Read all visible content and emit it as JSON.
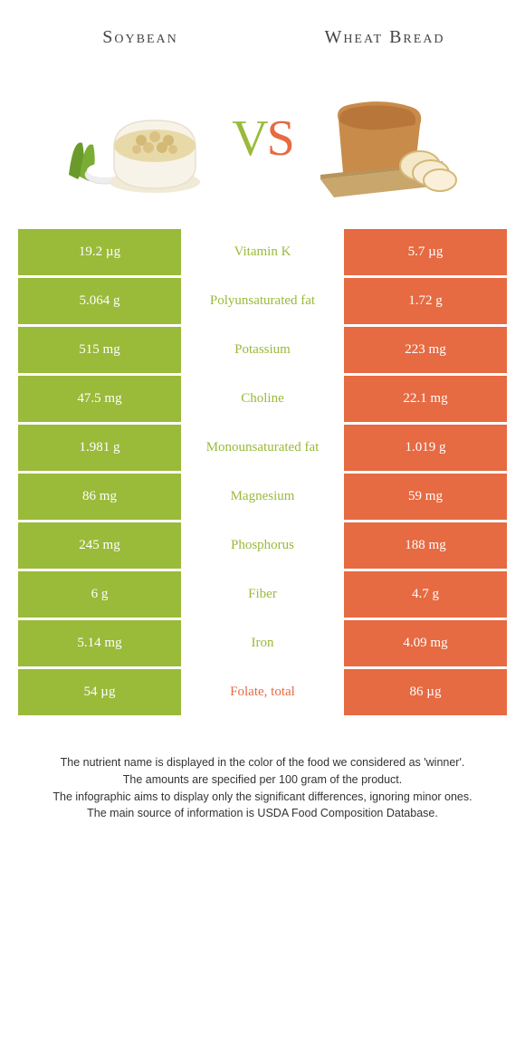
{
  "header": {
    "left_title": "Soybean",
    "right_title": "Wheat Bread"
  },
  "vs": {
    "v": "V",
    "s": "S"
  },
  "colors": {
    "green": "#9aba3a",
    "orange": "#e66a42",
    "background": "#ffffff"
  },
  "rows": [
    {
      "left": "19.2 µg",
      "label": "Vitamin K",
      "right": "5.7 µg",
      "winner": "green"
    },
    {
      "left": "5.064 g",
      "label": "Polyunsaturated fat",
      "right": "1.72 g",
      "winner": "green"
    },
    {
      "left": "515 mg",
      "label": "Potassium",
      "right": "223 mg",
      "winner": "green"
    },
    {
      "left": "47.5 mg",
      "label": "Choline",
      "right": "22.1 mg",
      "winner": "green"
    },
    {
      "left": "1.981 g",
      "label": "Monounsaturated fat",
      "right": "1.019 g",
      "winner": "green"
    },
    {
      "left": "86 mg",
      "label": "Magnesium",
      "right": "59 mg",
      "winner": "green"
    },
    {
      "left": "245 mg",
      "label": "Phosphorus",
      "right": "188 mg",
      "winner": "green"
    },
    {
      "left": "6 g",
      "label": "Fiber",
      "right": "4.7 g",
      "winner": "green"
    },
    {
      "left": "5.14 mg",
      "label": "Iron",
      "right": "4.09 mg",
      "winner": "green"
    },
    {
      "left": "54 µg",
      "label": "Folate, total",
      "right": "86 µg",
      "winner": "orange"
    }
  ],
  "footer": {
    "line1": "The nutrient name is displayed in the color of the food we considered as 'winner'.",
    "line2": "The amounts are specified per 100 gram of the product.",
    "line3": "The infographic aims to display only the significant differences, ignoring minor ones.",
    "line4": "The main source of information is USDA Food Composition Database."
  }
}
